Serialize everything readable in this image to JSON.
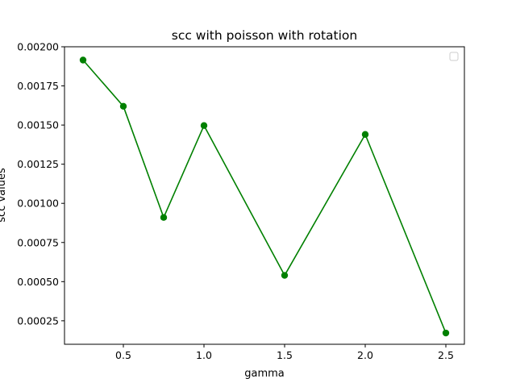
{
  "chart_data": {
    "type": "line",
    "title": "scc with poisson with rotation",
    "xlabel": "gamma",
    "ylabel": "scc values",
    "x": [
      0.25,
      0.5,
      0.75,
      1.0,
      1.5,
      2.0,
      2.5
    ],
    "series": [
      {
        "values": [
          0.001915,
          0.00162,
          0.00091,
          0.001497,
          0.00054,
          0.00144,
          0.000172
        ],
        "color": "#008000",
        "marker": "circle"
      }
    ],
    "xlim": [
      0.135,
      2.615
    ],
    "ylim": [
      0.0001,
      0.002
    ],
    "xticks": [
      0.5,
      1.0,
      1.5,
      2.0,
      2.5
    ],
    "xtick_labels": [
      "0.5",
      "1.0",
      "1.5",
      "2.0",
      "2.5"
    ],
    "yticks": [
      0.00025,
      0.0005,
      0.00075,
      0.001,
      0.00125,
      0.0015,
      0.00175,
      0.002
    ],
    "ytick_labels": [
      "0.00025",
      "0.00050",
      "0.00075",
      "0.00100",
      "0.00125",
      "0.00150",
      "0.00175",
      "0.00200"
    ],
    "grid": false,
    "legend": "top-right (empty)"
  }
}
